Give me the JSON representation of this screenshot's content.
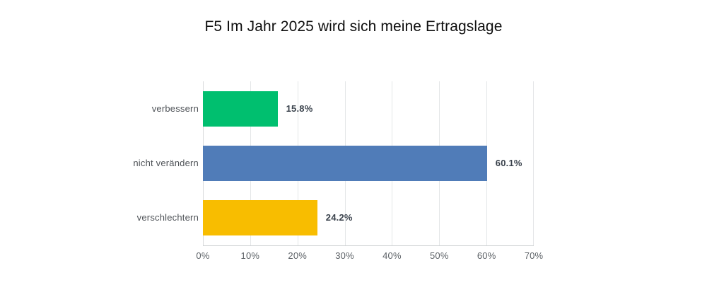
{
  "chart_data": {
    "type": "bar",
    "orientation": "horizontal",
    "title": "F5 Im Jahr 2025 wird sich meine Ertragslage",
    "categories": [
      "verbessern",
      "nicht verändern",
      "verschlechtern"
    ],
    "values": [
      15.8,
      60.1,
      24.2
    ],
    "value_labels": [
      "15.8%",
      "60.1%",
      "24.2%"
    ],
    "bar_colors": [
      "#00BF6F",
      "#507CB8",
      "#F8BD00"
    ],
    "xlabel": "",
    "ylabel": "",
    "xlim": [
      0,
      70
    ],
    "xticks": [
      0,
      10,
      20,
      30,
      40,
      50,
      60,
      70
    ],
    "xtick_labels": [
      "0%",
      "10%",
      "20%",
      "30%",
      "40%",
      "50%",
      "60%",
      "70%"
    ],
    "grid": true,
    "legend": false,
    "background": "#ffffff"
  },
  "colors": {
    "gridline": "#e4e6e8",
    "axis_line": "#cfd2d4",
    "title_text": "#0e0e0e",
    "category_text": "#4e5257",
    "value_text": "#3a424c",
    "tick_text": "#5c6166"
  }
}
